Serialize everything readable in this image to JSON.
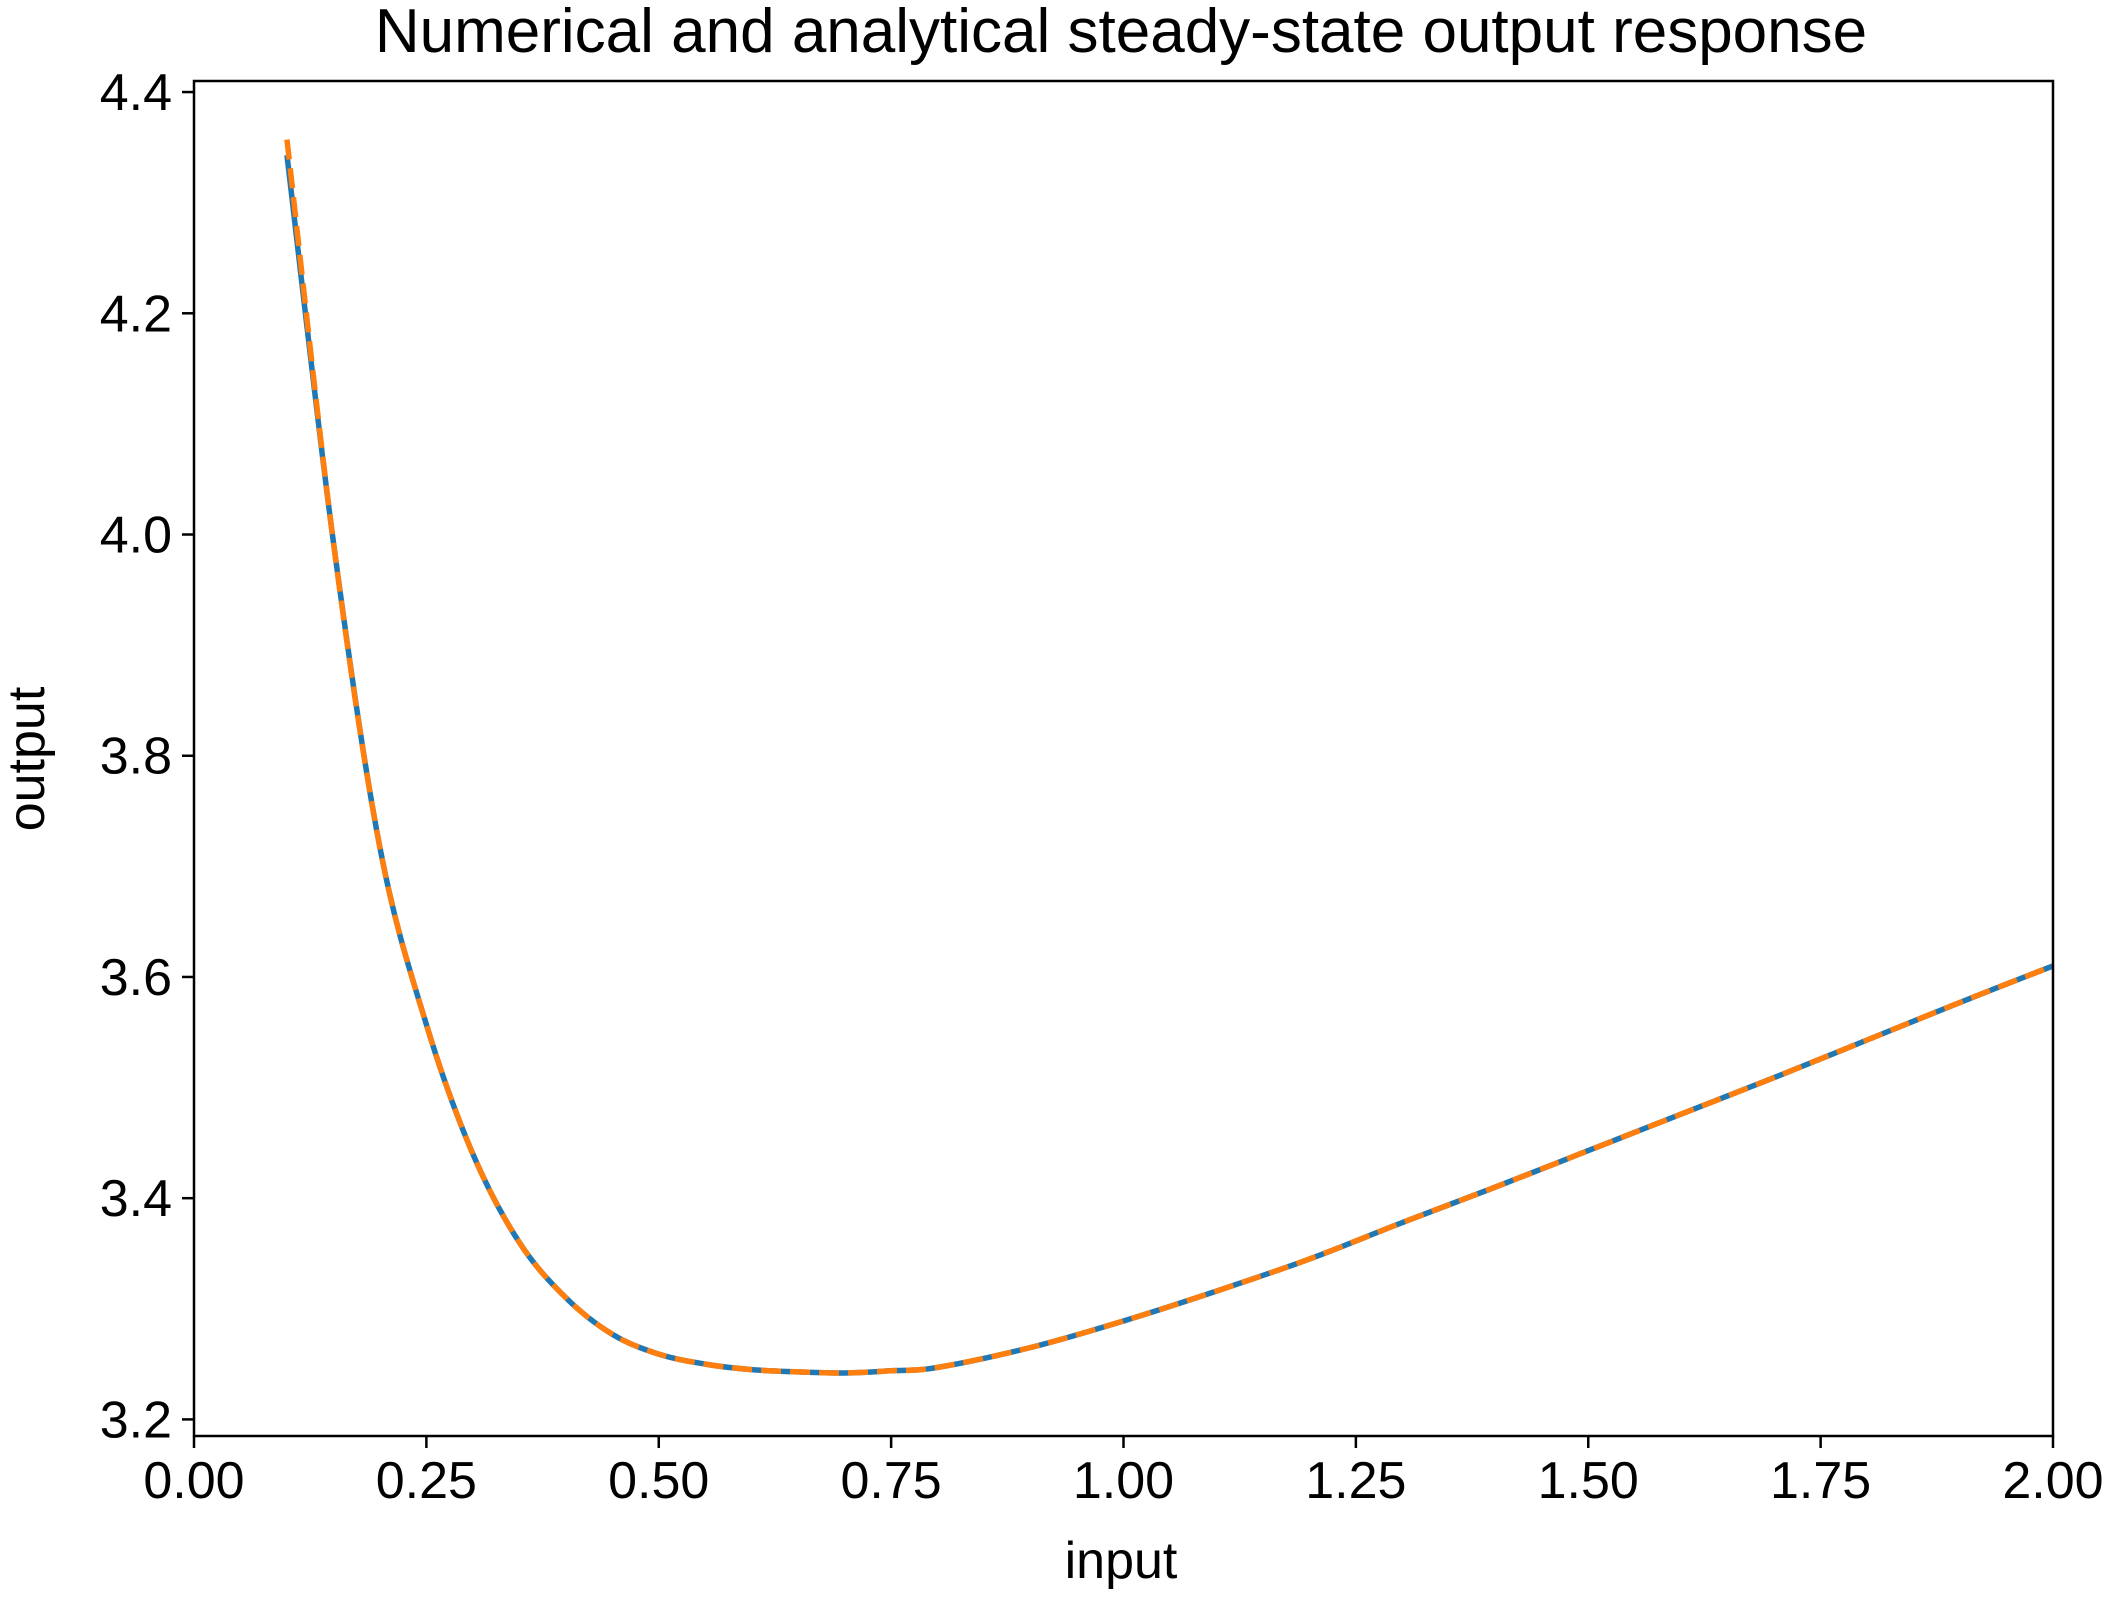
{
  "chart_data": {
    "type": "line",
    "title": "Numerical and analytical steady-state output response",
    "xlabel": "input",
    "ylabel": "output",
    "xlim": [
      0.0,
      2.0
    ],
    "ylim": [
      3.185,
      4.41
    ],
    "xticks": [
      0.0,
      0.25,
      0.5,
      0.75,
      1.0,
      1.25,
      1.5,
      1.75,
      2.0
    ],
    "xtick_labels": [
      "0.00",
      "0.25",
      "0.50",
      "0.75",
      "1.00",
      "1.25",
      "1.50",
      "1.75",
      "2.00"
    ],
    "yticks": [
      3.2,
      3.4,
      3.6,
      3.8,
      4.0,
      4.2,
      4.4
    ],
    "ytick_labels": [
      "3.2",
      "3.4",
      "3.6",
      "3.8",
      "4.0",
      "4.2",
      "4.4"
    ],
    "grid": false,
    "legend": "none",
    "series": [
      {
        "color": "#1f77b4",
        "style": "solid",
        "x": [
          0.1,
          0.15,
          0.2,
          0.25,
          0.3,
          0.35,
          0.4,
          0.45,
          0.5,
          0.55,
          0.6,
          0.65,
          0.7,
          0.75,
          0.8,
          0.9,
          1.0,
          1.1,
          1.2,
          1.3,
          1.4,
          1.5,
          1.6,
          1.7,
          1.8,
          1.9,
          2.0
        ],
        "values": [
          4.343,
          3.993,
          3.717,
          3.557,
          3.44,
          3.36,
          3.31,
          3.277,
          3.259,
          3.25,
          3.245,
          3.243,
          3.242,
          3.244,
          3.247,
          3.265,
          3.289,
          3.316,
          3.345,
          3.378,
          3.41,
          3.443,
          3.476,
          3.509,
          3.543,
          3.577,
          3.61
        ]
      },
      {
        "color": "#ff7f0e",
        "style": "dashed",
        "x": [
          0.1,
          0.15,
          0.2,
          0.25,
          0.3,
          0.35,
          0.4,
          0.45,
          0.5,
          0.55,
          0.6,
          0.65,
          0.7,
          0.75,
          0.8,
          0.9,
          1.0,
          1.1,
          1.2,
          1.3,
          1.4,
          1.5,
          1.6,
          1.7,
          1.8,
          1.9,
          2.0
        ],
        "values": [
          4.357,
          3.993,
          3.717,
          3.557,
          3.44,
          3.36,
          3.31,
          3.277,
          3.259,
          3.25,
          3.245,
          3.243,
          3.242,
          3.244,
          3.247,
          3.265,
          3.289,
          3.316,
          3.345,
          3.378,
          3.41,
          3.443,
          3.476,
          3.509,
          3.543,
          3.577,
          3.61
        ]
      }
    ]
  }
}
